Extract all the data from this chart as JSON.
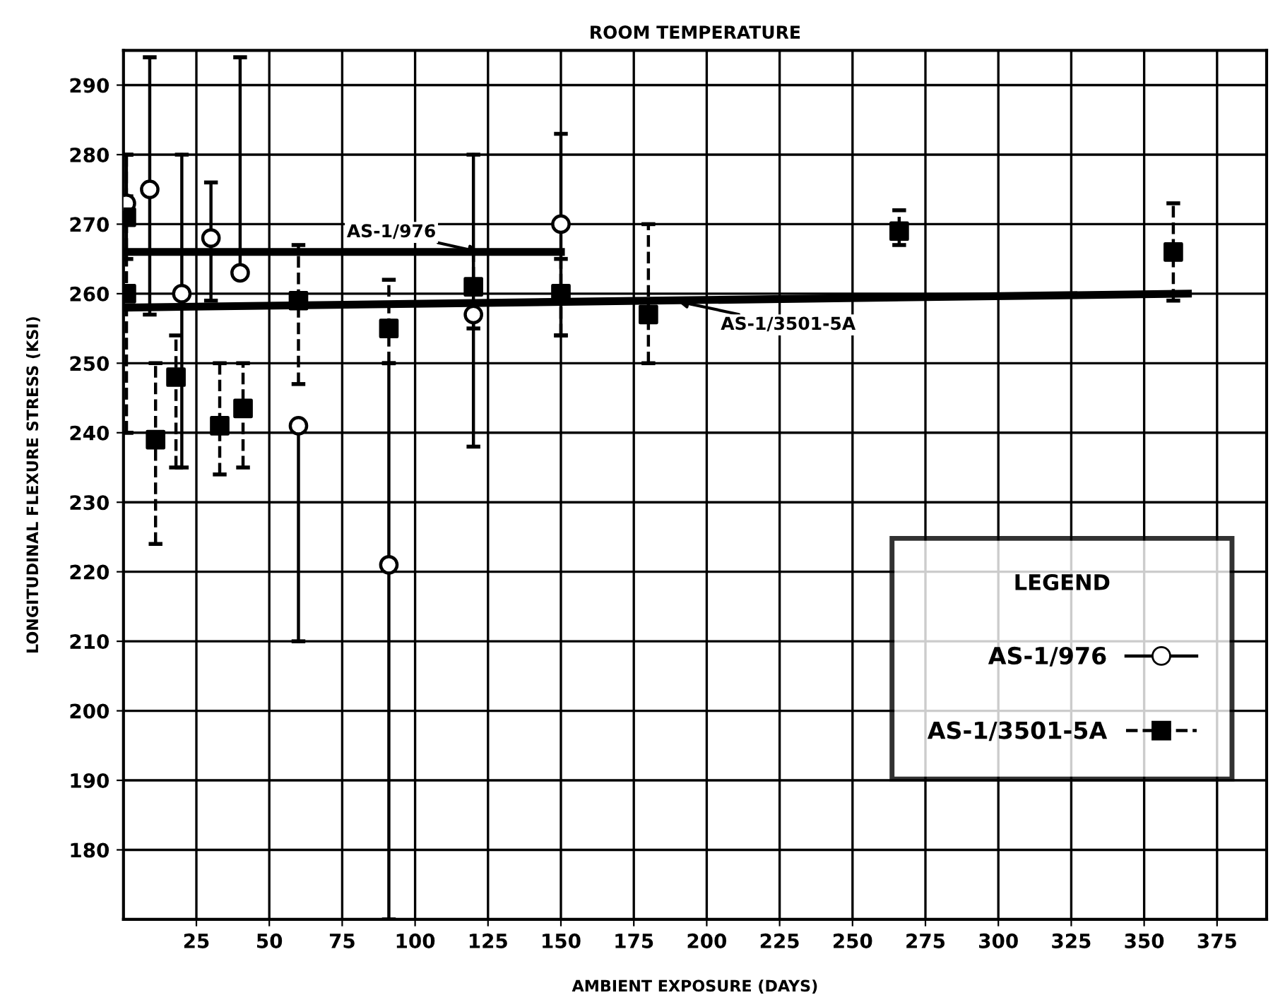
{
  "chart_data": {
    "type": "scatter",
    "title": "ROOM TEMPERATURE",
    "xlabel": "AMBIENT EXPOSURE (DAYS)",
    "ylabel": "LONGITUDINAL FLEXURE STRESS (KSI)",
    "legend_title": "LEGEND",
    "xlim": [
      0,
      392
    ],
    "xticks": [
      25,
      50,
      75,
      100,
      125,
      150,
      175,
      200,
      225,
      250,
      275,
      300,
      325,
      350,
      375
    ],
    "ylim": [
      170,
      295
    ],
    "yticks": [
      180,
      190,
      200,
      210,
      220,
      230,
      240,
      250,
      260,
      270,
      280,
      290
    ],
    "grid": true,
    "legend": "right",
    "series": [
      {
        "name": "AS-1/976",
        "marker": "circle",
        "line_style": "solid",
        "color": "#000000",
        "x": [
          1,
          9,
          20,
          30,
          40,
          60,
          91,
          120,
          150
        ],
        "values": [
          273,
          275,
          260,
          268,
          263,
          241,
          221,
          257,
          270
        ],
        "errors": [
          [
            265,
            280
          ],
          [
            257,
            294
          ],
          [
            235,
            280
          ],
          [
            259,
            276
          ],
          [
            263,
            294
          ],
          [
            210,
            241
          ],
          [
            170,
            250
          ],
          [
            238,
            280
          ],
          [
            254,
            283
          ]
        ]
      },
      {
        "name": "AS-1/3501-5A",
        "marker": "square",
        "line_style": "dashed",
        "color": "#000000",
        "x": [
          1,
          1,
          11,
          18,
          33,
          41,
          60,
          91,
          120,
          150,
          180,
          266,
          360
        ],
        "values": [
          271,
          260,
          239,
          248,
          241,
          243.5,
          259,
          255,
          261,
          260,
          257,
          269,
          266
        ],
        "errors": [
          [
            240,
            274
          ],
          [
            240,
            280
          ],
          [
            224,
            250
          ],
          [
            235,
            254
          ],
          [
            234,
            250
          ],
          [
            235,
            250
          ],
          [
            247,
            267
          ],
          [
            250,
            262
          ],
          [
            255,
            266
          ],
          [
            254,
            265
          ],
          [
            250,
            270
          ],
          [
            267,
            272
          ],
          [
            259,
            273
          ]
        ]
      },
      {
        "type": "line",
        "color": "#000000",
        "x": [
          0,
          150
        ],
        "values": [
          266,
          266
        ]
      },
      {
        "type": "line",
        "color": "#000000",
        "x": [
          0,
          365
        ],
        "values": [
          258,
          260
        ]
      }
    ],
    "annotations": [
      {
        "text": "AS-1/976",
        "x": 122,
        "y": 266
      },
      {
        "text": "AS-1/3501-5A",
        "x": 190,
        "y": 258.9
      }
    ]
  }
}
